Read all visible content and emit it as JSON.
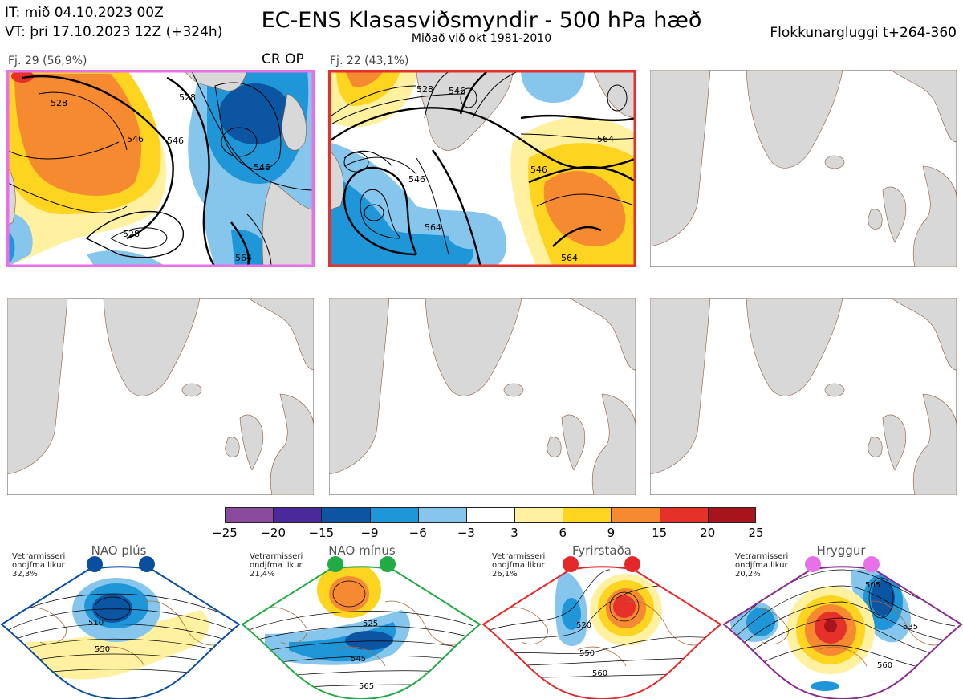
{
  "header": {
    "it_line": "IT: mið 04.10.2023 00Z",
    "vt_line": "VT: þri 17.10.2023 12Z  (+324h)",
    "title": "EC-ENS Klasasviðsmyndir - 500 hPa hæð",
    "subtitle": "Miðað við okt 1981-2010",
    "window": "Flokkunargluggi t+264-360"
  },
  "panels": [
    {
      "label": "Fj. 29 (56,9%)",
      "tag": "CR OP",
      "border": "#e870e8",
      "contours": [
        "546",
        "528",
        "528",
        "546",
        "528",
        "546",
        "564"
      ]
    },
    {
      "label": "Fj. 22 (43,1%)",
      "tag": "",
      "border": "#e8302a",
      "contours": [
        "546",
        "528",
        "546",
        "564",
        "546",
        "564",
        "564"
      ]
    }
  ],
  "legend": {
    "labels": [
      "−25",
      "−20",
      "−15",
      "−9",
      "−6",
      "−3",
      "3",
      "6",
      "9",
      "15",
      "20",
      "25"
    ],
    "colors": [
      "#8c4a9e",
      "#4a2a9a",
      "#0b55a2",
      "#1e96d8",
      "#86c6ec",
      "#ffffff",
      "#fff1a0",
      "#fdd420",
      "#f58a30",
      "#e6302a",
      "#a8141c"
    ]
  },
  "regimes": [
    {
      "name": "NAO plús",
      "note": "Vetrarmisseri ondjfma likur 32,3%",
      "color": "#0a4ea0",
      "contours": [
        "510",
        "550"
      ]
    },
    {
      "name": "NAO mínus",
      "note": "Vetrarmisseri ondjfma likur 21,4%",
      "color": "#22aa44",
      "contours": [
        "525",
        "545",
        "565"
      ]
    },
    {
      "name": "Fyrirstaða",
      "note": "Vetrarmisseri ondjfma likur 26,1%",
      "color": "#e4282a",
      "contours": [
        "520",
        "550",
        "560"
      ]
    },
    {
      "name": "Hryggur",
      "note": "Vetrarmisseri ondjfma likur 20,2%",
      "color": "#e870e8",
      "contours": [
        "505",
        "535",
        "560"
      ]
    }
  ]
}
